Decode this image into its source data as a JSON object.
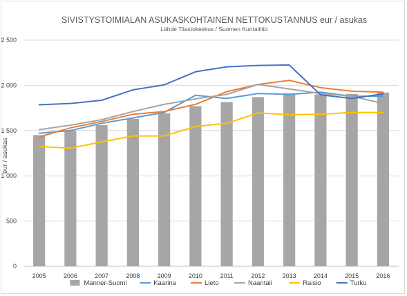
{
  "chart_data": {
    "type": "bar",
    "title": "SIVISTYSTOIMIALAN ASUKASKOHTAINEN NETTOKUSTANNUS eur / asukas",
    "subtitle": "Lähde Tilastokeskus / Suomen Kuntaliitto",
    "xlabel": "",
    "ylabel": "eur / asukas",
    "ylim": [
      0,
      2500
    ],
    "yticks": [
      0,
      500,
      1000,
      1500,
      2000,
      2500
    ],
    "ytick_labels": [
      "0",
      "500",
      "1 000",
      "1 500",
      "2 000",
      "2 500"
    ],
    "grid": true,
    "legend_position": "bottom",
    "categories": [
      "2005",
      "2006",
      "2007",
      "2008",
      "2009",
      "2010",
      "2011",
      "2012",
      "2013",
      "2014",
      "2015",
      "2016"
    ],
    "series": [
      {
        "name": "Manner-Suomi",
        "kind": "bar",
        "color": "#a6a6a6",
        "values": [
          1450,
          1500,
          1560,
          1630,
          1690,
          1770,
          1815,
          1870,
          1910,
          1900,
          1905,
          1920
        ]
      },
      {
        "name": "Kaarina",
        "kind": "line",
        "color": "#5b9bd5",
        "values": [
          1470,
          1500,
          1580,
          1640,
          1700,
          1890,
          1855,
          1910,
          1900,
          1925,
          1880,
          1880
        ]
      },
      {
        "name": "Lieto",
        "kind": "line",
        "color": "#ed7d31",
        "values": [
          1430,
          1530,
          1600,
          1680,
          1710,
          1790,
          1930,
          2010,
          2055,
          1975,
          1935,
          1925
        ]
      },
      {
        "name": "Naantali",
        "kind": "line",
        "color": "#a5a5a5",
        "values": [
          1510,
          1560,
          1620,
          1710,
          1790,
          1850,
          1900,
          2010,
          1960,
          1910,
          1880,
          1800
        ]
      },
      {
        "name": "Raisio",
        "kind": "line",
        "color": "#ffc000",
        "values": [
          1325,
          1305,
          1375,
          1440,
          1440,
          1545,
          1580,
          1695,
          1675,
          1680,
          1700,
          1700
        ]
      },
      {
        "name": "Turku",
        "kind": "line",
        "color": "#4472c4",
        "values": [
          1785,
          1800,
          1835,
          1950,
          2005,
          2150,
          2205,
          2220,
          2225,
          1895,
          1855,
          1905
        ]
      }
    ]
  }
}
